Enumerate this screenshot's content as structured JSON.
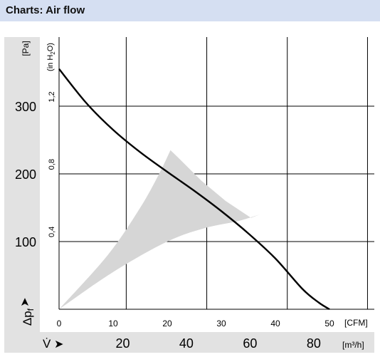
{
  "header": {
    "title": "Charts: Air flow"
  },
  "chart_data": {
    "type": "line",
    "title": "",
    "y_axis_pa": {
      "unit": "[Pa]",
      "ticks": [
        "100",
        "200",
        "300"
      ],
      "tick_values": [
        100,
        200,
        300
      ]
    },
    "y_axis_inh2o": {
      "unit": "(in H2O)",
      "unit_main": "(in H",
      "unit_sub": "2",
      "unit_end": "O)",
      "ticks": [
        "0,4",
        "0,8",
        "1,2"
      ],
      "tick_values": [
        0.4,
        0.8,
        1.2
      ]
    },
    "y_label": {
      "symbol": "Δp",
      "subscript": "f",
      "arrow": "➤"
    },
    "x_axis_cfm": {
      "unit": "[CFM]",
      "ticks": [
        "0",
        "10",
        "20",
        "30",
        "40",
        "50"
      ],
      "tick_values": [
        0,
        10,
        20,
        30,
        40,
        50
      ],
      "xlim": [
        0,
        50
      ]
    },
    "x_axis_m3h": {
      "label": "V̇",
      "arrow": "➤",
      "unit": "[m³/h]",
      "ticks": [
        "20",
        "40",
        "60",
        "80"
      ],
      "tick_values": [
        20,
        40,
        60,
        80
      ]
    },
    "ylim_pa": [
      0,
      355
    ],
    "grid": true,
    "series": [
      {
        "x_cfm": [
          0,
          5,
          10,
          15,
          20,
          25,
          30,
          35,
          40,
          45,
          48,
          50
        ],
        "y_pa": [
          355,
          305,
          265,
          232,
          203,
          175,
          145,
          112,
          75,
          30,
          10,
          0
        ]
      }
    ],
    "operating_range": {
      "outer_cfm": [
        20.6,
        21.9,
        26.3,
        30.8,
        35.5,
        37.1
      ],
      "outer_pa": [
        235,
        225,
        190,
        160,
        135,
        140
      ],
      "lower_cfm": [
        0,
        10,
        20,
        27,
        33,
        37.1
      ],
      "lower_pa": [
        0,
        55,
        100,
        120,
        130,
        140
      ],
      "upper_cfm": [
        0,
        9,
        15,
        18.5,
        20.6
      ],
      "upper_pa": [
        0,
        80,
        150,
        200,
        235
      ]
    }
  }
}
